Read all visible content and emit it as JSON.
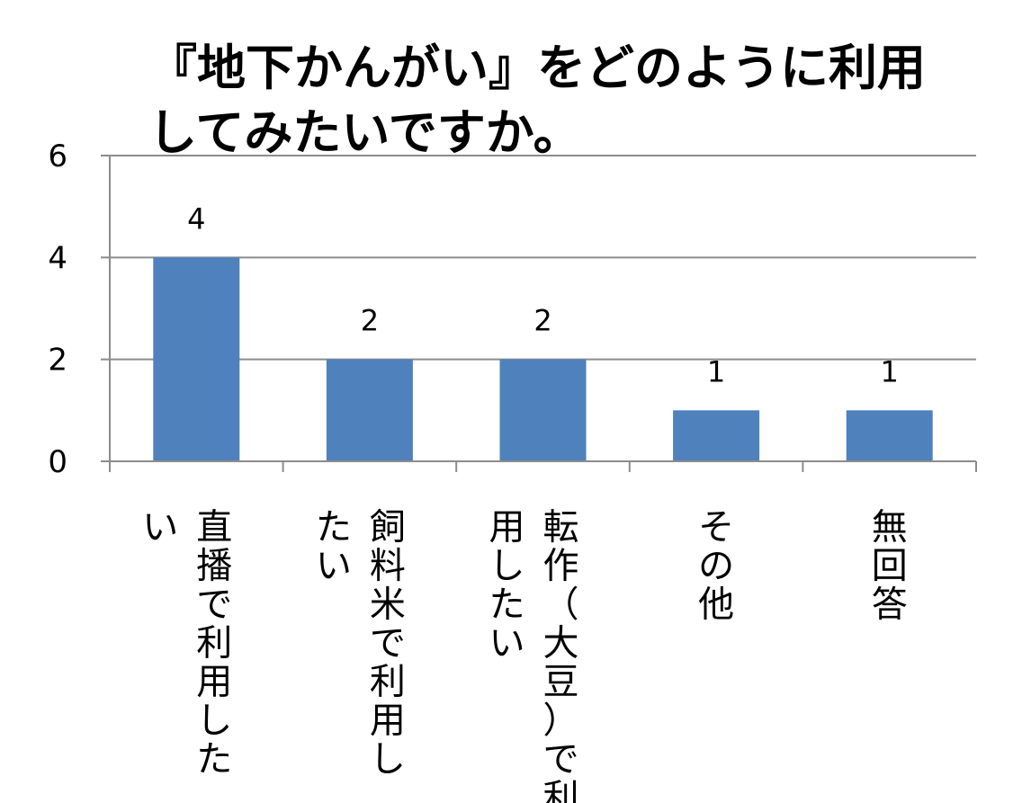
{
  "chart_data": {
    "type": "bar",
    "title": "『地下かんがい』をどのように利用してみたいですか。",
    "categories": [
      [
        "直播で利用した",
        "い"
      ],
      [
        "飼料米で利用し",
        "たい"
      ],
      [
        "転作（大豆）で利",
        "用したい"
      ],
      [
        "その他"
      ],
      [
        "無回答"
      ]
    ],
    "values": [
      4,
      2,
      2,
      1,
      1
    ],
    "data_labels": [
      "4",
      "2",
      "2",
      "1",
      "1"
    ],
    "ylim": [
      0,
      6
    ],
    "y_ticks": [
      0,
      2,
      4,
      6
    ],
    "y_tick_labels": [
      "0",
      "2",
      "4",
      "6"
    ],
    "grid": true,
    "bar_color": "#4f81bd",
    "grid_color": "#8c8c8c"
  }
}
